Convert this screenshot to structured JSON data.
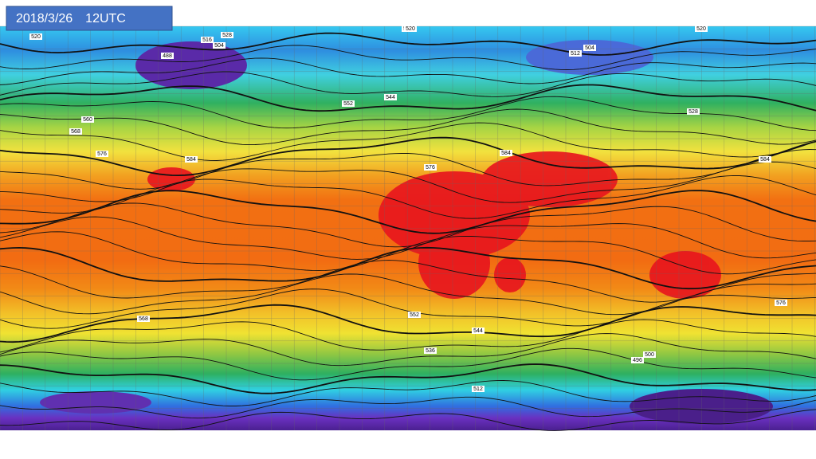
{
  "title": "2018/3/26　12UTC",
  "contour_labels": [
    "520",
    "516",
    "504",
    "528",
    "488",
    "504",
    "512",
    "536",
    "544",
    "552",
    "560",
    "568",
    "576",
    "584",
    "576",
    "584",
    "584",
    "576",
    "568",
    "552",
    "544",
    "536",
    "528",
    "520",
    "512",
    "500",
    "496",
    "520"
  ]
}
